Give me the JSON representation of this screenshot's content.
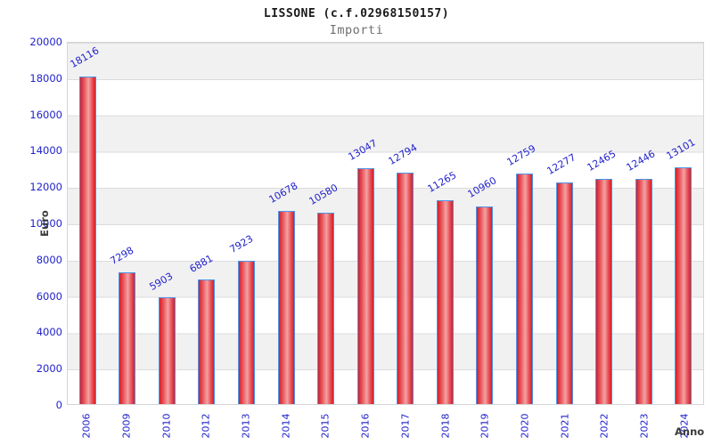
{
  "chart_data": {
    "type": "bar",
    "title": "LISSONE (c.f.02968150157)",
    "subtitle": "Importi",
    "xlabel": "Anno",
    "ylabel": "Euro",
    "categories": [
      "2006",
      "2009",
      "2010",
      "2012",
      "2013",
      "2014",
      "2015",
      "2016",
      "2017",
      "2018",
      "2019",
      "2020",
      "2021",
      "2022",
      "2023",
      "2024"
    ],
    "values": [
      18116,
      7298,
      5903,
      6881,
      7923,
      10678,
      10580,
      13047,
      12794,
      11265,
      10960,
      12759,
      12277,
      12465,
      12446,
      13101
    ],
    "ylim": [
      0,
      20000
    ],
    "yticks": [
      0,
      2000,
      4000,
      6000,
      8000,
      10000,
      12000,
      14000,
      16000,
      18000,
      20000
    ],
    "grid": "horizontal-bands-alternating-gray-white",
    "legend": "none",
    "bar_value_labels_rotation_deg": -30,
    "x_tick_rotation_deg": -90,
    "colors": {
      "label_blue": "#2222cc",
      "bar_border": "#4d94e8",
      "bar_fill_edge": "#d41f28",
      "bar_fill_inner": "#e8555c",
      "bar_fill_center": "#f4a2a2",
      "band_gray": "#f1f1f1",
      "gridline": "#dcdcdc",
      "axis_label_text": "#3a3a3a",
      "title_text": "#1a1a1a",
      "subtitle_text": "#6f6f6f",
      "background": "#ffffff"
    }
  }
}
